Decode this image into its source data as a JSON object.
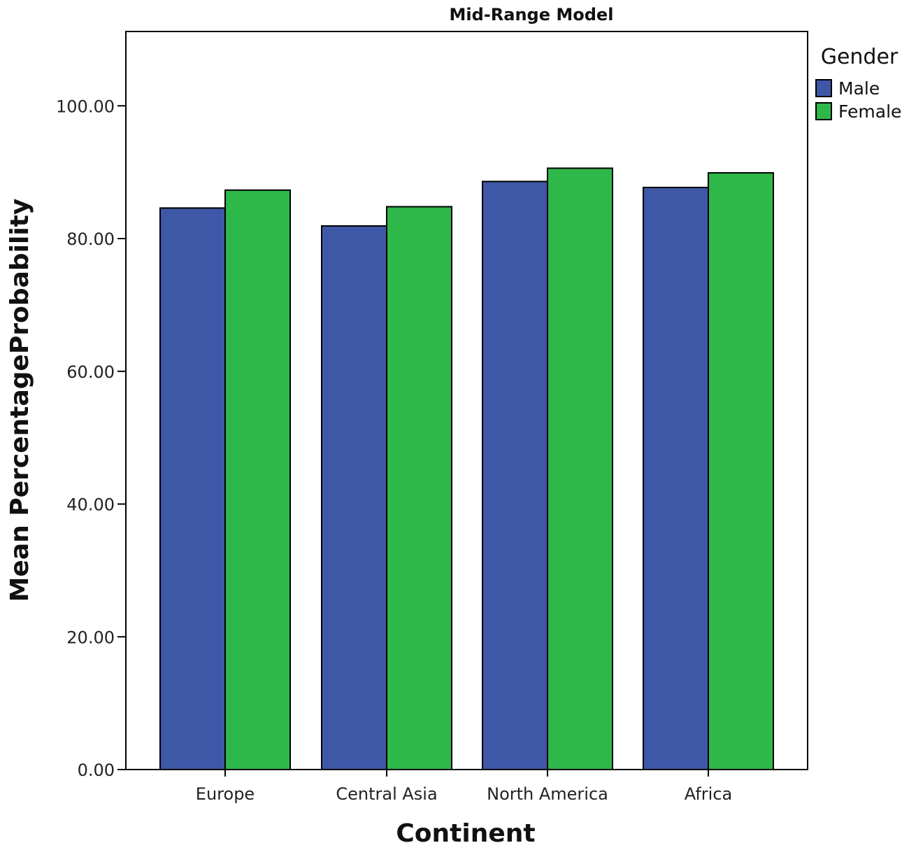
{
  "chart_data": {
    "type": "bar",
    "title": "Mid-Range Model",
    "xlabel": "Continent",
    "ylabel": "Mean PercentageProbability",
    "categories": [
      "Europe",
      "Central Asia",
      "North America",
      "Africa"
    ],
    "series": [
      {
        "name": "Male",
        "color": "#3f57a7",
        "values": [
          84.6,
          81.9,
          88.6,
          87.7
        ]
      },
      {
        "name": "Female",
        "color": "#2fb84a",
        "values": [
          87.3,
          84.8,
          90.6,
          89.9
        ]
      }
    ],
    "yticks": [
      "0.00",
      "20.00",
      "40.00",
      "60.00",
      "80.00",
      "100.00"
    ],
    "ytick_values": [
      0,
      20,
      40,
      60,
      80,
      100
    ],
    "ylim": [
      0,
      111.2
    ],
    "legend": {
      "title": "Gender",
      "placement": "right"
    },
    "grid": false
  }
}
